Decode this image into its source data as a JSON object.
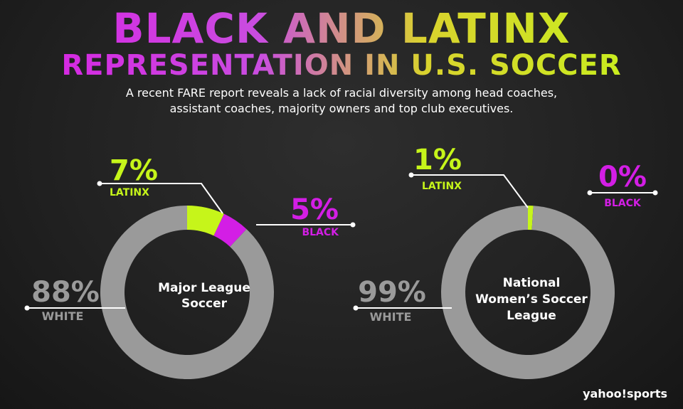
{
  "title_line1": "BLACK AND LATINX",
  "title_line2": "REPRESENTATION IN U.S. SOCCER",
  "subtitle_line1": "A recent FARE report reveals a lack of racial diversity among head coaches,",
  "subtitle_line2": "assistant coaches, majority owners and top club executives.",
  "brand": "yahoo!sports",
  "colors": {
    "latinx": "#c6f51a",
    "black": "#d31ee5",
    "white": "#9a9a9a"
  },
  "chart_data": [
    {
      "type": "pie",
      "title": "Major League Soccer",
      "title_lines": [
        "Major League",
        "Soccer"
      ],
      "slices": [
        {
          "label": "LATINX",
          "value": 7,
          "display": "7%"
        },
        {
          "label": "BLACK",
          "value": 5,
          "display": "5%"
        },
        {
          "label": "WHITE",
          "value": 88,
          "display": "88%"
        }
      ]
    },
    {
      "type": "pie",
      "title": "National Women's Soccer League",
      "title_lines": [
        "National",
        "Women’s Soccer",
        "League"
      ],
      "slices": [
        {
          "label": "LATINX",
          "value": 1,
          "display": "1%"
        },
        {
          "label": "BLACK",
          "value": 0,
          "display": "0%"
        },
        {
          "label": "WHITE",
          "value": 99,
          "display": "99%"
        }
      ]
    }
  ]
}
